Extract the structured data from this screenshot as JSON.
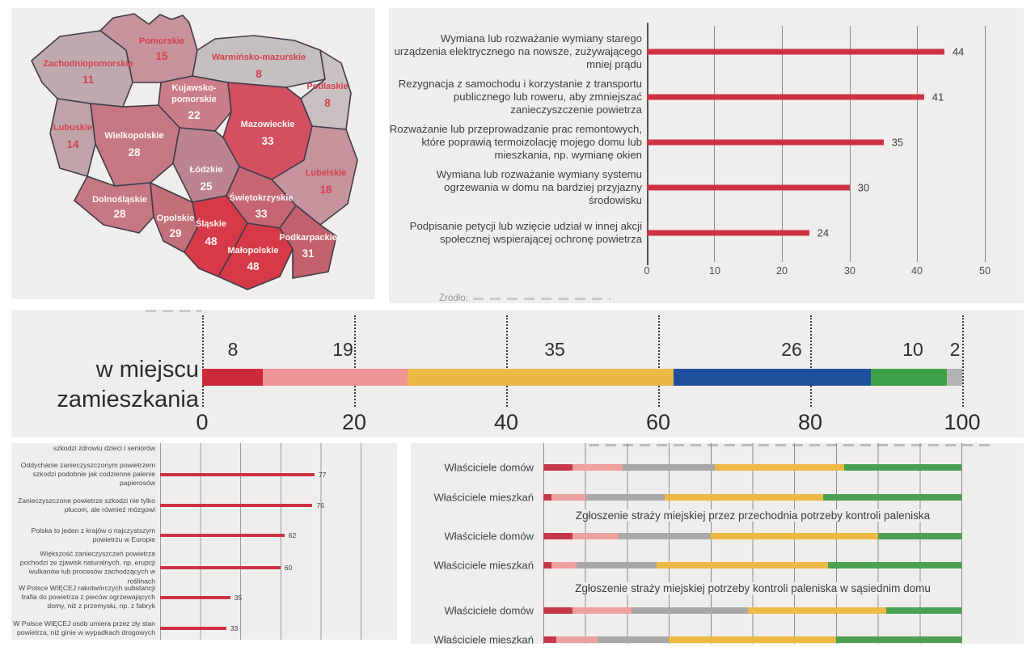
{
  "page": {
    "background": "#ffffff",
    "panel_background": "#f0eeec"
  },
  "chart_data": [
    {
      "type": "heatmap",
      "name": "poland-voivodeships-map",
      "regions": [
        {
          "name": "Zachodniopomorskie",
          "value": 11,
          "fill": "#c0a9ae",
          "label_color": "#d5414f"
        },
        {
          "name": "Pomorskie",
          "value": 15,
          "fill": "#c6929b",
          "label_color": "#d5414f"
        },
        {
          "name": "Warmińsko-mazurskie",
          "value": 8,
          "fill": "#c6bfbf",
          "label_color": "#d5414f"
        },
        {
          "name": "Podlaskie",
          "value": 8,
          "fill": "#c9c0c2",
          "label_color": "#d5414f"
        },
        {
          "name": "Kujawsko-pomorskie",
          "name_line1": "Kujawsko-",
          "name_line2": "pomorskie",
          "value": 22,
          "fill": "#ca7e8a",
          "label_color": "#fdf6f3"
        },
        {
          "name": "Mazowieckie",
          "value": 33,
          "fill": "#d25060",
          "label_color": "#fdf6f3"
        },
        {
          "name": "Lubuskie",
          "value": 14,
          "fill": "#bfa3a9",
          "label_color": "#d5414f"
        },
        {
          "name": "Wielkopolskie",
          "value": 28,
          "fill": "#c57883",
          "label_color": "#fdf6f3"
        },
        {
          "name": "Łódzkie",
          "value": 25,
          "fill": "#bb8490",
          "label_color": "#fdf6f3"
        },
        {
          "name": "Lubelskie",
          "value": 18,
          "fill": "#c6939d",
          "label_color": "#d5414f"
        },
        {
          "name": "Dolnośląskie",
          "value": 28,
          "fill": "#c57883",
          "label_color": "#fdf6f3"
        },
        {
          "name": "Opolskie",
          "value": 29,
          "fill": "#c3707b",
          "label_color": "#fdf6f3"
        },
        {
          "name": "Śląskie",
          "value": 48,
          "fill": "#d63a48",
          "label_color": "#fdf6f3"
        },
        {
          "name": "Świętokrzyskie",
          "value": 33,
          "fill": "#c66673",
          "label_color": "#fdf6f3"
        },
        {
          "name": "Małopolskie",
          "value": 48,
          "fill": "#d63a48",
          "label_color": "#fdf6f3"
        },
        {
          "name": "Podkarpackie",
          "value": 31,
          "fill": "#c2606d",
          "label_color": "#fdf6f3"
        }
      ]
    },
    {
      "type": "bar",
      "name": "air-protection-actions",
      "bar_color": "#cd3243",
      "xlim": [
        0,
        50
      ],
      "x_ticks": [
        "0",
        "10",
        "20",
        "30",
        "40",
        "50"
      ],
      "rows": [
        {
          "label": "Wymiana lub rozważanie wymiany starego urządzenia elektrycznego na nowsze, zużywającego mniej prądu",
          "value": 44
        },
        {
          "label": "Rezygnacja z samochodu i korzystanie z transportu publicznego lub roweru, aby zmniejszać zanieczyszczenie powietrza",
          "value": 41
        },
        {
          "label": "Rozważanie lub przeprowadzanie prac remontowych, które poprawią termoizolację mojego domu lub mieszkania, np. wymianę okien",
          "value": 35
        },
        {
          "label": "Wymiana lub rozważanie wymiany systemu ogrzewania w domu na bardziej przyjazny środowisku",
          "value": 30
        },
        {
          "label": "Podpisanie petycji lub wzięcie udział w innej akcji społecznej wspierającej ochronę powietrza",
          "value": 24
        }
      ],
      "footer_truncated": "Źródło:"
    },
    {
      "type": "stacked-bar",
      "name": "air-quality-in-place-of-residence",
      "row_label_line1": "w miejscu",
      "row_label_line2": "zamieszkania",
      "values": [
        8,
        19,
        35,
        26,
        10,
        2
      ],
      "colors": [
        "#cb2b38",
        "#ef9598",
        "#eab944",
        "#20509c",
        "#3fa04a",
        "#b5b3b1"
      ],
      "x_ticks": [
        "0",
        "20",
        "40",
        "60",
        "80",
        "100"
      ],
      "xlim": [
        0,
        100
      ]
    },
    {
      "type": "bar",
      "name": "air-pollution-beliefs",
      "bar_color": "#cd3243",
      "xlim": [
        0,
        100
      ],
      "partial_top_label": "szkodzi zdrowiu dzieci i seniorów",
      "rows": [
        {
          "label": "Oddychanie zanieczyszczonym powietrzem szkodzi podobnie jak codzienne palenie papierosów",
          "value": 77
        },
        {
          "label": "Zanieczyszczone powietrze szkodzi nie tylko płucom, ale również mózgowi",
          "value": 76
        },
        {
          "label": "Polska to jeden z krajów o najczystszym powietrzu w Europie",
          "value": 62
        },
        {
          "label": "Większość zanieczyszczeń powietrza pochodzi ze zjawisk naturalnych, np. erupcji wulkanów lub procesów zachodzących w roślinach",
          "value": 60
        },
        {
          "label": "W Polsce WIĘCEJ rakotwórczych substancji trafia do powietrza z pieców ogrzewających domy, niż z przemysłu, np. z fabryk",
          "value": 35
        },
        {
          "label": "W Polsce WIĘCEJ osób umiera przez zły stan powietrza, niż ginie w wypadkach drogowych",
          "value": 33
        }
      ]
    },
    {
      "type": "stacked-bar-groups",
      "name": "owners-reactions",
      "colors": [
        "#c4384a",
        "#eda09e",
        "#a8a8a6",
        "#ecb944",
        "#4aa152"
      ],
      "xlim": [
        0,
        100
      ],
      "groups": [
        {
          "heading": "",
          "rows": [
            {
              "label": "Właściciele domów",
              "values": [
                7,
                12,
                22,
                31,
                28
              ]
            },
            {
              "label": "Właściciele mieszkań",
              "values": [
                2,
                8,
                19,
                38,
                33
              ]
            }
          ]
        },
        {
          "heading": "Zgłoszenie straży miejskiej przez przechodnia potrzeby kontroli paleniska",
          "rows": [
            {
              "label": "Właściciele domów",
              "values": [
                7,
                11,
                22,
                40,
                20
              ]
            },
            {
              "label": "Właściciele mieszkań",
              "values": [
                2,
                6,
                19,
                41,
                32
              ]
            }
          ]
        },
        {
          "heading": "Zgłoszenie straży miejskiej potrzeby kontroli paleniska w sąsiednim domu",
          "rows": [
            {
              "label": "Właściciele domów",
              "values": [
                7,
                14,
                28,
                33,
                18
              ]
            },
            {
              "label": "Właściciele mieszkań",
              "values": [
                3,
                10,
                17,
                40,
                30
              ]
            }
          ]
        }
      ]
    }
  ]
}
